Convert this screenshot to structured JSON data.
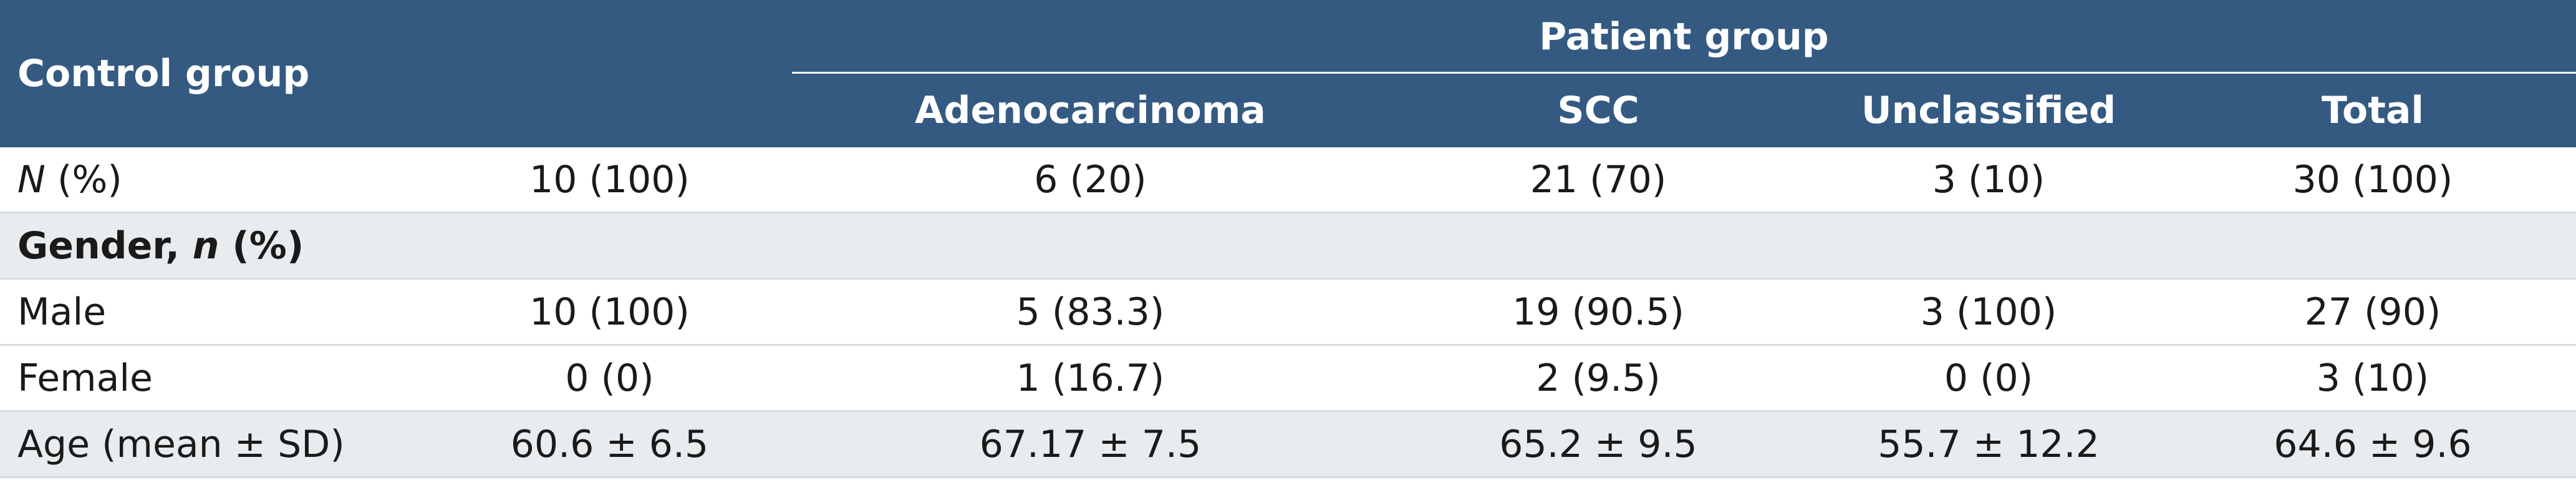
{
  "table": {
    "header": {
      "control": "Control group",
      "patient": "Patient group",
      "subgroups": [
        "Adenocarcinoma",
        "SCC",
        "Unclassified",
        "Total"
      ]
    },
    "rows": [
      {
        "label": [
          {
            "text": "N",
            "italic": true
          },
          {
            "text": " (%)"
          }
        ],
        "cells": [
          "10 (100)",
          "6 (20)",
          "21 (70)",
          "3 (10)",
          "30 (100)"
        ],
        "shaded": false
      },
      {
        "label": [
          {
            "text": "Gender, "
          },
          {
            "text": "n",
            "italic": true
          },
          {
            "text": " (%)"
          }
        ],
        "cells": [],
        "shaded": true,
        "bold": true
      },
      {
        "label": [
          {
            "text": "Male"
          }
        ],
        "cells": [
          "10 (100)",
          "5 (83.3)",
          "19 (90.5)",
          "3 (100)",
          "27 (90)"
        ],
        "shaded": false
      },
      {
        "label": [
          {
            "text": "Female"
          }
        ],
        "cells": [
          "0 (0)",
          "1 (16.7)",
          "2 (9.5)",
          "0 (0)",
          "3 (10)"
        ],
        "shaded": false
      },
      {
        "label": [
          {
            "text": "Age (mean ± SD)"
          }
        ],
        "cells": [
          "60.6 ± 6.5",
          "67.17 ± 7.5",
          "65.2 ± 9.5",
          "55.7 ± 12.2",
          "64.6 ± 9.6"
        ],
        "shaded": true
      }
    ]
  }
}
